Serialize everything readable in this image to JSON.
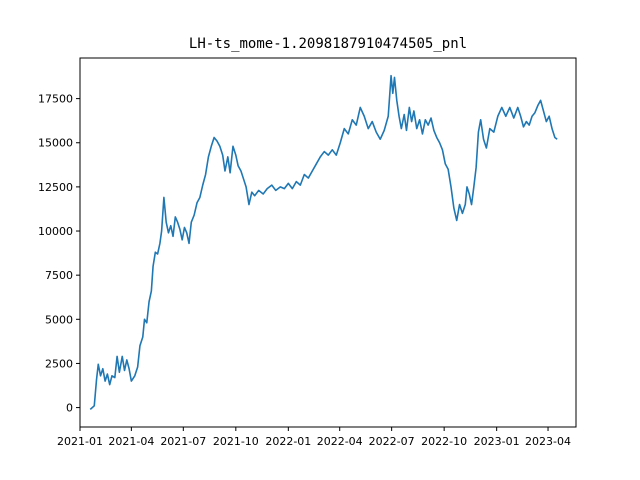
{
  "chart_data": {
    "type": "line",
    "title": "LH-ts_mome-1.2098187910474505_pnl",
    "xlabel": "",
    "ylabel": "",
    "x_axis_type": "date",
    "xlim": [
      "2021-01-01",
      "2023-05-20"
    ],
    "ylim": [
      -1100,
      19800
    ],
    "grid": false,
    "legend": "none",
    "x_ticks": [
      {
        "value": "2021-01-01",
        "label": "2021-01"
      },
      {
        "value": "2021-04-01",
        "label": "2021-04"
      },
      {
        "value": "2021-07-01",
        "label": "2021-07"
      },
      {
        "value": "2021-10-01",
        "label": "2021-10"
      },
      {
        "value": "2022-01-01",
        "label": "2022-01"
      },
      {
        "value": "2022-04-01",
        "label": "2022-04"
      },
      {
        "value": "2022-07-01",
        "label": "2022-07"
      },
      {
        "value": "2022-10-01",
        "label": "2022-10"
      },
      {
        "value": "2023-01-01",
        "label": "2023-01"
      },
      {
        "value": "2023-04-01",
        "label": "2023-04"
      }
    ],
    "y_ticks": [
      {
        "value": 0,
        "label": "0"
      },
      {
        "value": 2500,
        "label": "2500"
      },
      {
        "value": 5000,
        "label": "5000"
      },
      {
        "value": 7500,
        "label": "7500"
      },
      {
        "value": 10000,
        "label": "10000"
      },
      {
        "value": 12500,
        "label": "12500"
      },
      {
        "value": 15000,
        "label": "15000"
      },
      {
        "value": 17500,
        "label": "17500"
      }
    ],
    "series": [
      {
        "color": "#1f77b4",
        "points": [
          [
            "2021-01-19",
            -100
          ],
          [
            "2021-01-26",
            100
          ],
          [
            "2021-01-30",
            1600
          ],
          [
            "2021-02-02",
            2450
          ],
          [
            "2021-02-06",
            1800
          ],
          [
            "2021-02-10",
            2200
          ],
          [
            "2021-02-14",
            1500
          ],
          [
            "2021-02-18",
            1900
          ],
          [
            "2021-02-22",
            1300
          ],
          [
            "2021-02-26",
            1800
          ],
          [
            "2021-03-03",
            1700
          ],
          [
            "2021-03-07",
            2900
          ],
          [
            "2021-03-11",
            2000
          ],
          [
            "2021-03-16",
            2900
          ],
          [
            "2021-03-20",
            2100
          ],
          [
            "2021-03-24",
            2700
          ],
          [
            "2021-03-28",
            2200
          ],
          [
            "2021-04-01",
            1500
          ],
          [
            "2021-04-07",
            1800
          ],
          [
            "2021-04-12",
            2300
          ],
          [
            "2021-04-16",
            3500
          ],
          [
            "2021-04-21",
            4000
          ],
          [
            "2021-04-24",
            5000
          ],
          [
            "2021-04-28",
            4800
          ],
          [
            "2021-05-02",
            6000
          ],
          [
            "2021-05-06",
            6600
          ],
          [
            "2021-05-09",
            8000
          ],
          [
            "2021-05-13",
            8800
          ],
          [
            "2021-05-17",
            8700
          ],
          [
            "2021-05-21",
            9300
          ],
          [
            "2021-05-24",
            10000
          ],
          [
            "2021-05-28",
            11900
          ],
          [
            "2021-06-01",
            10500
          ],
          [
            "2021-06-05",
            9900
          ],
          [
            "2021-06-09",
            10300
          ],
          [
            "2021-06-13",
            9700
          ],
          [
            "2021-06-17",
            10800
          ],
          [
            "2021-06-21",
            10500
          ],
          [
            "2021-06-25",
            10100
          ],
          [
            "2021-06-29",
            9500
          ],
          [
            "2021-07-03",
            10200
          ],
          [
            "2021-07-07",
            9900
          ],
          [
            "2021-07-11",
            9300
          ],
          [
            "2021-07-15",
            10500
          ],
          [
            "2021-07-20",
            10900
          ],
          [
            "2021-07-25",
            11600
          ],
          [
            "2021-07-30",
            11900
          ],
          [
            "2021-08-04",
            12600
          ],
          [
            "2021-08-09",
            13200
          ],
          [
            "2021-08-14",
            14200
          ],
          [
            "2021-08-19",
            14800
          ],
          [
            "2021-08-24",
            15300
          ],
          [
            "2021-08-29",
            15100
          ],
          [
            "2021-09-03",
            14800
          ],
          [
            "2021-09-08",
            14300
          ],
          [
            "2021-09-12",
            13400
          ],
          [
            "2021-09-17",
            14200
          ],
          [
            "2021-09-21",
            13300
          ],
          [
            "2021-09-26",
            14800
          ],
          [
            "2021-10-01",
            14300
          ],
          [
            "2021-10-05",
            13700
          ],
          [
            "2021-10-10",
            13400
          ],
          [
            "2021-10-14",
            13000
          ],
          [
            "2021-10-19",
            12500
          ],
          [
            "2021-10-24",
            11500
          ],
          [
            "2021-10-29",
            12200
          ],
          [
            "2021-11-03",
            12000
          ],
          [
            "2021-11-10",
            12300
          ],
          [
            "2021-11-18",
            12100
          ],
          [
            "2021-11-25",
            12400
          ],
          [
            "2021-12-03",
            12600
          ],
          [
            "2021-12-10",
            12300
          ],
          [
            "2021-12-18",
            12500
          ],
          [
            "2021-12-25",
            12400
          ],
          [
            "2022-01-01",
            12700
          ],
          [
            "2022-01-08",
            12400
          ],
          [
            "2022-01-15",
            12800
          ],
          [
            "2022-01-22",
            12600
          ],
          [
            "2022-01-29",
            13200
          ],
          [
            "2022-02-05",
            13000
          ],
          [
            "2022-02-12",
            13400
          ],
          [
            "2022-02-19",
            13800
          ],
          [
            "2022-02-26",
            14200
          ],
          [
            "2022-03-05",
            14500
          ],
          [
            "2022-03-12",
            14300
          ],
          [
            "2022-03-19",
            14600
          ],
          [
            "2022-03-26",
            14300
          ],
          [
            "2022-04-02",
            15000
          ],
          [
            "2022-04-09",
            15800
          ],
          [
            "2022-04-16",
            15500
          ],
          [
            "2022-04-23",
            16300
          ],
          [
            "2022-04-30",
            16000
          ],
          [
            "2022-05-07",
            17000
          ],
          [
            "2022-05-14",
            16500
          ],
          [
            "2022-05-21",
            15800
          ],
          [
            "2022-05-28",
            16200
          ],
          [
            "2022-06-04",
            15600
          ],
          [
            "2022-06-11",
            15200
          ],
          [
            "2022-06-18",
            15700
          ],
          [
            "2022-06-25",
            16500
          ],
          [
            "2022-06-30",
            18800
          ],
          [
            "2022-07-03",
            17800
          ],
          [
            "2022-07-06",
            18700
          ],
          [
            "2022-07-10",
            17400
          ],
          [
            "2022-07-14",
            16500
          ],
          [
            "2022-07-18",
            15800
          ],
          [
            "2022-07-23",
            16600
          ],
          [
            "2022-07-27",
            15700
          ],
          [
            "2022-08-01",
            17000
          ],
          [
            "2022-08-05",
            16200
          ],
          [
            "2022-08-09",
            16800
          ],
          [
            "2022-08-14",
            15800
          ],
          [
            "2022-08-19",
            16300
          ],
          [
            "2022-08-24",
            15500
          ],
          [
            "2022-08-29",
            16300
          ],
          [
            "2022-09-03",
            16000
          ],
          [
            "2022-09-08",
            16400
          ],
          [
            "2022-09-13",
            15700
          ],
          [
            "2022-09-18",
            15300
          ],
          [
            "2022-09-23",
            15000
          ],
          [
            "2022-09-28",
            14600
          ],
          [
            "2022-10-03",
            13800
          ],
          [
            "2022-10-08",
            13500
          ],
          [
            "2022-10-13",
            12500
          ],
          [
            "2022-10-18",
            11300
          ],
          [
            "2022-10-23",
            10600
          ],
          [
            "2022-10-28",
            11500
          ],
          [
            "2022-11-02",
            11000
          ],
          [
            "2022-11-07",
            11500
          ],
          [
            "2022-11-10",
            12500
          ],
          [
            "2022-11-14",
            12100
          ],
          [
            "2022-11-18",
            11500
          ],
          [
            "2022-11-22",
            12500
          ],
          [
            "2022-11-26",
            13600
          ],
          [
            "2022-11-30",
            15600
          ],
          [
            "2022-12-04",
            16300
          ],
          [
            "2022-12-09",
            15200
          ],
          [
            "2022-12-14",
            14700
          ],
          [
            "2022-12-20",
            15800
          ],
          [
            "2022-12-27",
            15600
          ],
          [
            "2023-01-03",
            16500
          ],
          [
            "2023-01-10",
            17000
          ],
          [
            "2023-01-17",
            16500
          ],
          [
            "2023-01-24",
            17000
          ],
          [
            "2023-01-31",
            16400
          ],
          [
            "2023-02-07",
            17000
          ],
          [
            "2023-02-12",
            16500
          ],
          [
            "2023-02-17",
            15900
          ],
          [
            "2023-02-22",
            16200
          ],
          [
            "2023-02-27",
            16000
          ],
          [
            "2023-03-04",
            16500
          ],
          [
            "2023-03-09",
            16700
          ],
          [
            "2023-03-14",
            17100
          ],
          [
            "2023-03-19",
            17400
          ],
          [
            "2023-03-24",
            16800
          ],
          [
            "2023-03-29",
            16200
          ],
          [
            "2023-04-03",
            16500
          ],
          [
            "2023-04-08",
            15800
          ],
          [
            "2023-04-13",
            15300
          ],
          [
            "2023-04-17",
            15200
          ]
        ]
      }
    ]
  }
}
